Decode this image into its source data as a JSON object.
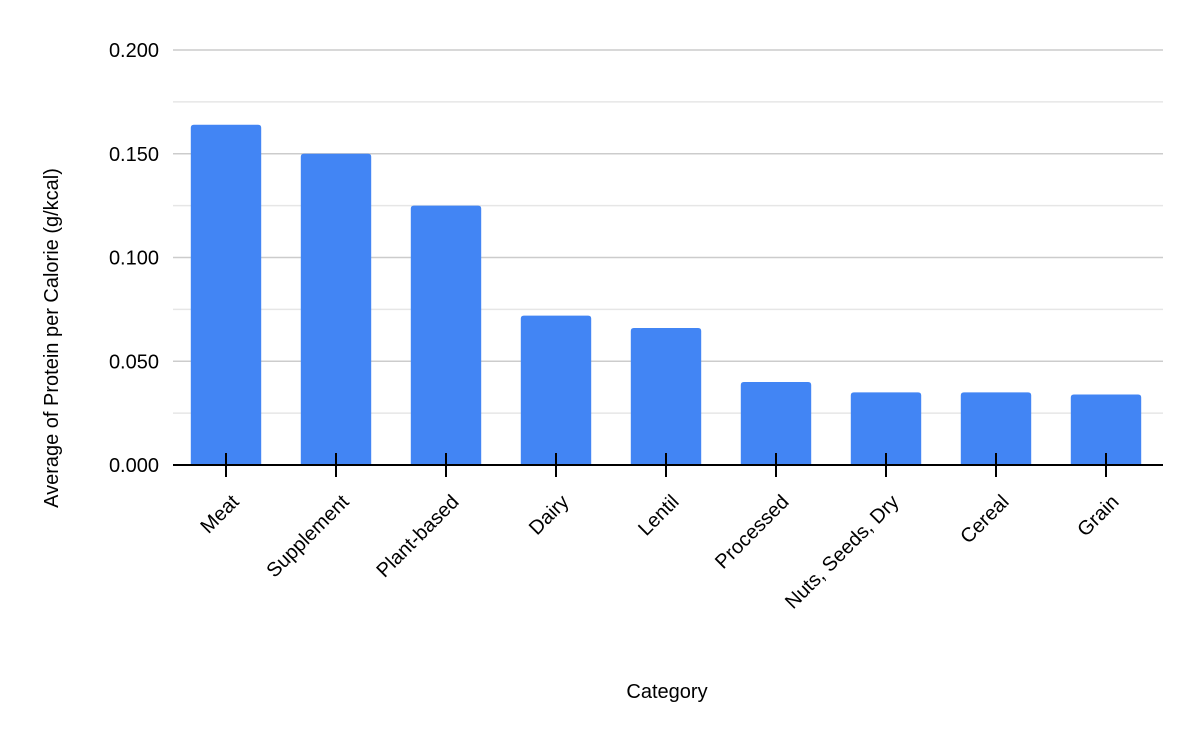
{
  "chart_data": {
    "type": "bar",
    "title": "",
    "xlabel": "Category",
    "ylabel": "Average of Protein per Calorie (g/kcal)",
    "categories": [
      "Meat",
      "Supplement",
      "Plant-based",
      "Dairy",
      "Lentil",
      "Processed",
      "Nuts, Seeds, Dry",
      "Cereal",
      "Grain"
    ],
    "values": [
      0.164,
      0.15,
      0.125,
      0.072,
      0.066,
      0.04,
      0.035,
      0.035,
      0.034
    ],
    "ylim": [
      0,
      0.2
    ],
    "yticks": [
      "0.000",
      "0.050",
      "0.100",
      "0.150",
      "0.200"
    ],
    "grid": true,
    "bar_color": "#4285f4",
    "legend": "none"
  }
}
